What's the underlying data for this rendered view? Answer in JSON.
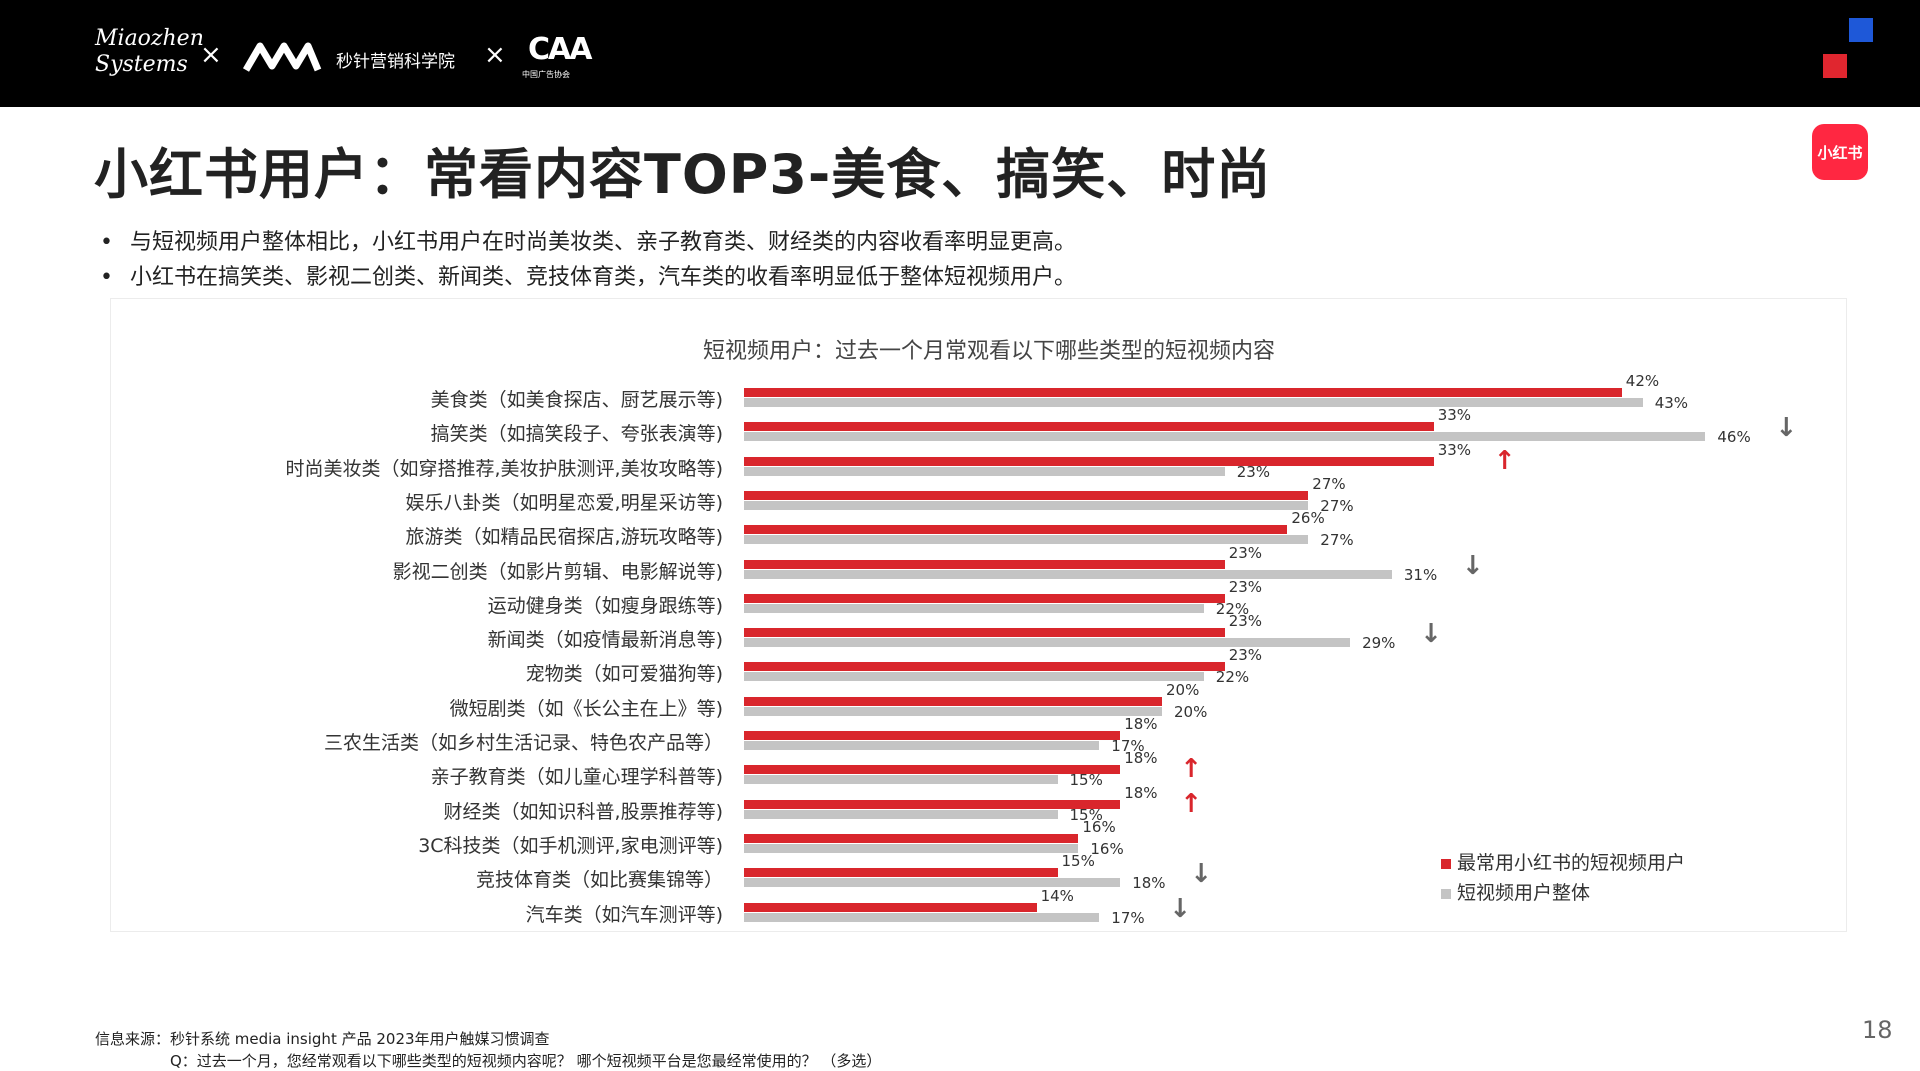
{
  "header": {
    "logo_line1": "Miaozhen",
    "logo_line2": "Systems",
    "sep1": "×",
    "partner_name": "秒针营销科学院",
    "sep2": "×",
    "assoc_mark": "CAA",
    "assoc_sub": "中国广告协会"
  },
  "page": {
    "title": "小红书用户：常看内容TOP3-美食、搞笑、时尚",
    "badge": "小红书",
    "bullets": [
      "与短视频用户整体相比，小红书用户在时尚美妆类、亲子教育类、财经类的内容收看率明显更高。",
      "小红书在搞笑类、影视二创类、新闻类、竞技体育类，汽车类的收看率明显低于整体短视频用户。"
    ],
    "bullet_mark": "•",
    "source": "信息来源：秒针系统 media insight 产品 2023年用户触媒习惯调查",
    "question": "Q：过去一个月，您经常观看以下哪些类型的短视频内容呢？ 哪个短视频平台是您最经常使用的？ （多选）",
    "page_number": "18"
  },
  "colors": {
    "xhs": "#d9262c",
    "all": "#c4c4c4",
    "up": "#d9262c",
    "down": "#666666"
  },
  "chart_data": {
    "type": "bar",
    "orientation": "horizontal",
    "title": "短视频用户：过去一个月常观看以下哪些类型的短视频内容",
    "unit": "%",
    "categories": [
      "美食类（如美食探店、厨艺展示等)",
      "搞笑类（如搞笑段子、夸张表演等)",
      "时尚美妆类（如穿搭推荐,美妆护肤测评,美妆攻略等)",
      "娱乐八卦类（如明星恋爱,明星采访等)",
      "旅游类（如精品民宿探店,游玩攻略等)",
      "影视二创类（如影片剪辑、电影解说等)",
      "运动健身类（如瘦身跟练等)",
      "新闻类（如疫情最新消息等)",
      "宠物类（如可爱猫狗等)",
      "微短剧类（如《长公主在上》等)",
      "三农生活类（如乡村生活记录、特色农产品等）",
      "亲子教育类（如儿童心理学科普等)",
      "财经类（如知识科普,股票推荐等)",
      "3C科技类（如手机测评,家电测评等)",
      "竞技体育类（如比赛集锦等）",
      "汽车类（如汽车测评等)"
    ],
    "series": [
      {
        "name": "最常用小红书的短视频用户",
        "values": [
          42,
          33,
          33,
          27,
          26,
          23,
          23,
          23,
          23,
          20,
          18,
          18,
          18,
          16,
          15,
          14
        ]
      },
      {
        "name": "短视频用户整体",
        "values": [
          43,
          46,
          23,
          27,
          27,
          31,
          22,
          29,
          22,
          20,
          17,
          15,
          15,
          16,
          18,
          17
        ]
      }
    ],
    "markers": [
      "",
      "down",
      "up",
      "",
      "",
      "down",
      "",
      "down",
      "",
      "",
      "",
      "up",
      "up",
      "",
      "down",
      "down"
    ],
    "legend_position": "bottom-right"
  }
}
